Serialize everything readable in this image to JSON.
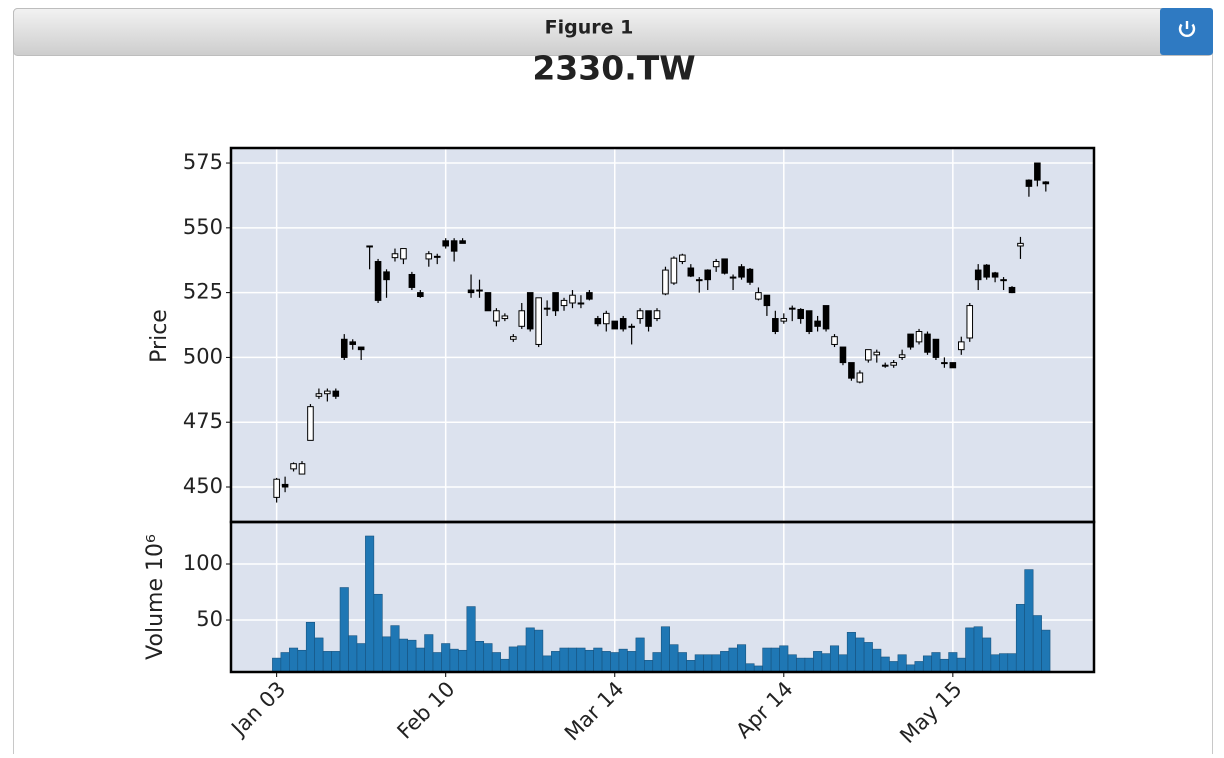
{
  "window": {
    "title": "Figure 1"
  },
  "chart_data": {
    "type": "candlestick",
    "title": "2330.TW",
    "ylabel": "Price",
    "open": [
      446,
      451,
      457,
      455,
      468,
      485,
      486,
      487,
      507,
      506,
      504,
      543,
      537,
      533,
      538.5,
      538,
      532,
      525,
      538,
      539,
      545,
      545,
      545,
      526,
      526,
      525,
      514,
      515,
      507,
      512,
      525,
      505,
      519,
      525,
      520,
      521,
      521,
      525,
      515,
      513,
      514,
      515,
      512,
      515,
      518,
      515,
      524.5,
      528.7,
      537,
      534.5,
      530,
      533.7,
      535,
      538,
      531,
      535,
      534,
      522.5,
      524,
      515,
      514,
      519,
      518.5,
      518,
      514,
      520,
      505,
      504,
      498,
      490.5,
      499,
      501,
      497,
      497,
      500,
      509,
      506,
      509,
      507,
      498,
      498,
      503,
      507.5,
      533.7,
      535.6,
      532.6,
      530,
      527,
      543,
      568.4,
      575,
      567.7
    ],
    "high": [
      453.5,
      454,
      459.5,
      460,
      482,
      488,
      488,
      488,
      509,
      507,
      504,
      543,
      538,
      534,
      542,
      542,
      533,
      526,
      541,
      540,
      546,
      546,
      546,
      532,
      530,
      525,
      519,
      517,
      509,
      521,
      525,
      523,
      522,
      525,
      523,
      526,
      524,
      526,
      516,
      518,
      514,
      516,
      513,
      519,
      518,
      519,
      535,
      539,
      540,
      536,
      531,
      534,
      538,
      538,
      532,
      536,
      534.5,
      527,
      524,
      518,
      517,
      520,
      519,
      518,
      516,
      520,
      509,
      504,
      498,
      495,
      503,
      503,
      498,
      499,
      503,
      509,
      511,
      510,
      507,
      500,
      498,
      508,
      521,
      536,
      536,
      533,
      531,
      527.5,
      546.5,
      568.7,
      575,
      568
    ],
    "low": [
      444,
      448,
      456,
      455,
      468,
      484,
      483,
      484,
      499,
      503,
      499,
      534,
      521,
      523,
      537,
      536,
      526,
      523,
      535,
      536,
      542,
      537,
      544,
      523,
      523,
      518,
      512,
      514,
      506,
      511,
      510,
      504,
      516,
      516,
      518,
      519,
      519,
      522,
      512,
      510,
      511,
      510,
      505,
      513,
      510,
      514,
      524,
      528,
      536,
      531,
      525,
      526,
      533,
      532,
      526,
      530,
      528,
      522,
      516,
      509,
      513,
      514,
      513,
      509,
      510,
      510,
      504,
      497,
      491,
      490,
      498,
      498,
      496,
      496,
      499,
      503,
      505,
      501,
      499,
      496,
      496,
      501,
      506,
      526,
      530,
      529,
      526,
      524.8,
      538,
      562,
      566,
      564
    ],
    "close": [
      453,
      450,
      459,
      459,
      481,
      486,
      487,
      485,
      500,
      505,
      503,
      543,
      522,
      530,
      540,
      542,
      527,
      523.5,
      540,
      539,
      543,
      541,
      544,
      525,
      526,
      518,
      518,
      516,
      508,
      518,
      511,
      523,
      519,
      518,
      522,
      524,
      521,
      522.5,
      513,
      517,
      511,
      511,
      512,
      518,
      512,
      518,
      533.7,
      538.3,
      539.5,
      531.4,
      530,
      530,
      537,
      532.5,
      531,
      531,
      529,
      525,
      520,
      510,
      515,
      519,
      515,
      510,
      512,
      511,
      508,
      498,
      492,
      494,
      503,
      502,
      497,
      498,
      501,
      504,
      510,
      502,
      500,
      498,
      496,
      506,
      520,
      530,
      531,
      531,
      530,
      525,
      544,
      566,
      568.4,
      567
    ],
    "up_color": "#ffffff",
    "down_color": "#000000",
    "edge_color": "#000000",
    "ylim": [
      436.5,
      580.8
    ],
    "yticks": [
      450,
      475,
      500,
      525,
      550,
      575
    ],
    "xlim": [
      -5.4,
      96.7
    ],
    "xticks": [
      {
        "value": 0,
        "label": "Jan 03"
      },
      {
        "value": 20,
        "label": "Feb 10"
      },
      {
        "value": 40,
        "label": "Mar 14"
      },
      {
        "value": 60,
        "label": "Apr 14"
      },
      {
        "value": 80,
        "label": "May 15"
      }
    ],
    "grid": true,
    "background": "#dce2ee",
    "volume": {
      "ylabel": "Volume  10⁶",
      "color": "#1f77b4",
      "values": [
        16,
        21,
        25,
        23,
        48,
        34,
        22,
        22,
        79,
        36,
        29,
        125,
        73,
        35,
        45,
        33,
        32,
        25,
        37,
        21,
        29,
        24,
        23,
        62,
        31,
        29,
        21,
        15,
        26,
        27,
        43,
        41,
        18,
        22,
        25,
        25,
        25,
        23,
        25,
        22,
        21,
        24,
        22,
        34,
        14,
        21,
        44,
        28,
        21,
        14,
        19,
        19,
        19,
        22,
        25,
        28,
        11,
        9,
        25,
        25,
        27,
        19,
        16,
        16,
        22,
        20,
        27,
        19,
        39,
        34,
        30,
        24,
        17,
        13,
        19,
        10,
        13,
        18,
        21,
        15,
        21,
        16,
        43,
        44,
        34,
        19,
        20,
        20,
        64,
        95,
        54,
        41
      ],
      "ylim": [
        3.6,
        137.5
      ],
      "yticks": [
        50,
        100
      ]
    }
  }
}
